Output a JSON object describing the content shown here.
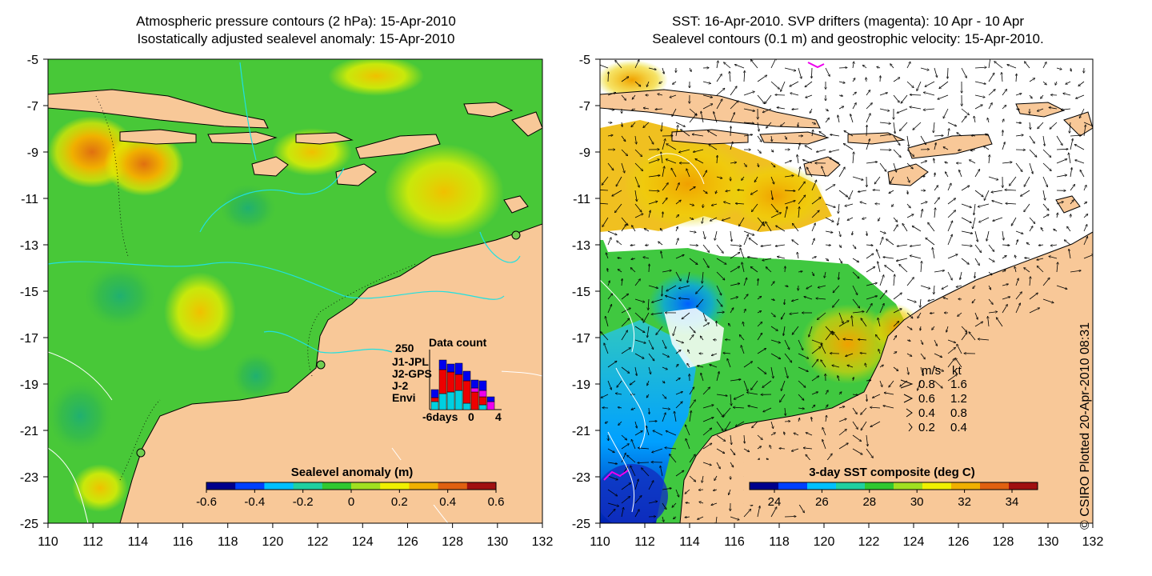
{
  "left_panel": {
    "title_line1": "Atmospheric pressure contours (2 hPa): 15-Apr-2010",
    "title_line2": "Isostatically adjusted sealevel anomaly: 15-Apr-2010",
    "colorbar": {
      "label": "Sealevel anomaly (m)",
      "min": -0.6,
      "max": 0.6,
      "ticks": [
        "-0.6",
        "-0.4",
        "-0.2",
        "0",
        "0.2",
        "0.4",
        "0.6"
      ],
      "palette": [
        "#00008c",
        "#0040ff",
        "#00c0ff",
        "#20d0a0",
        "#30c830",
        "#a0e020",
        "#f0f000",
        "#f0b000",
        "#e06010",
        "#a01010"
      ]
    },
    "data_count": {
      "title": "Data count",
      "ymax_label": "250",
      "x_labels": [
        "-6days",
        "0",
        "4"
      ],
      "missions": [
        {
          "name": "J1-JPL",
          "color": "#0000ee"
        },
        {
          "name": "J2-GPS",
          "color": "#ee00ee"
        },
        {
          "name": "J-2",
          "color": "#ee0000"
        },
        {
          "name": "Envi",
          "color": "#00d0e0"
        }
      ]
    }
  },
  "right_panel": {
    "title_line1": "SST: 16-Apr-2010. SVP drifters (magenta): 10 Apr - 10 Apr",
    "title_line2": "Sealevel contours (0.1 m) and geostrophic velocity: 15-Apr-2010.",
    "colorbar": {
      "label": "3-day SST composite (deg C)",
      "ticks": [
        "24",
        "26",
        "28",
        "30",
        "32",
        "34"
      ],
      "palette": [
        "#00008c",
        "#0040ff",
        "#00c0ff",
        "#20d0a0",
        "#30c830",
        "#a0e020",
        "#f0f000",
        "#f0b000",
        "#e06010",
        "#a01010"
      ]
    },
    "velocity_legend": {
      "header_ms": "m/s",
      "header_kt": "kt",
      "rows": [
        {
          "ms": "0.8",
          "kt": "1.6"
        },
        {
          "ms": "0.6",
          "kt": "1.2"
        },
        {
          "ms": "0.4",
          "kt": "0.8"
        },
        {
          "ms": "0.2",
          "kt": "0.4"
        }
      ]
    }
  },
  "axes": {
    "x_ticks": [
      "110",
      "112",
      "114",
      "116",
      "118",
      "120",
      "122",
      "124",
      "126",
      "128",
      "130",
      "132"
    ],
    "y_ticks": [
      "-5",
      "-7",
      "-9",
      "-11",
      "-13",
      "-15",
      "-17",
      "-19",
      "-21",
      "-23",
      "-25"
    ]
  },
  "colors": {
    "land": "#f8c898",
    "ocean_green": "#40c840",
    "no_data": "#ffffff"
  },
  "credit": "© CSIRO Plotted 20-Apr-2010 08:31"
}
